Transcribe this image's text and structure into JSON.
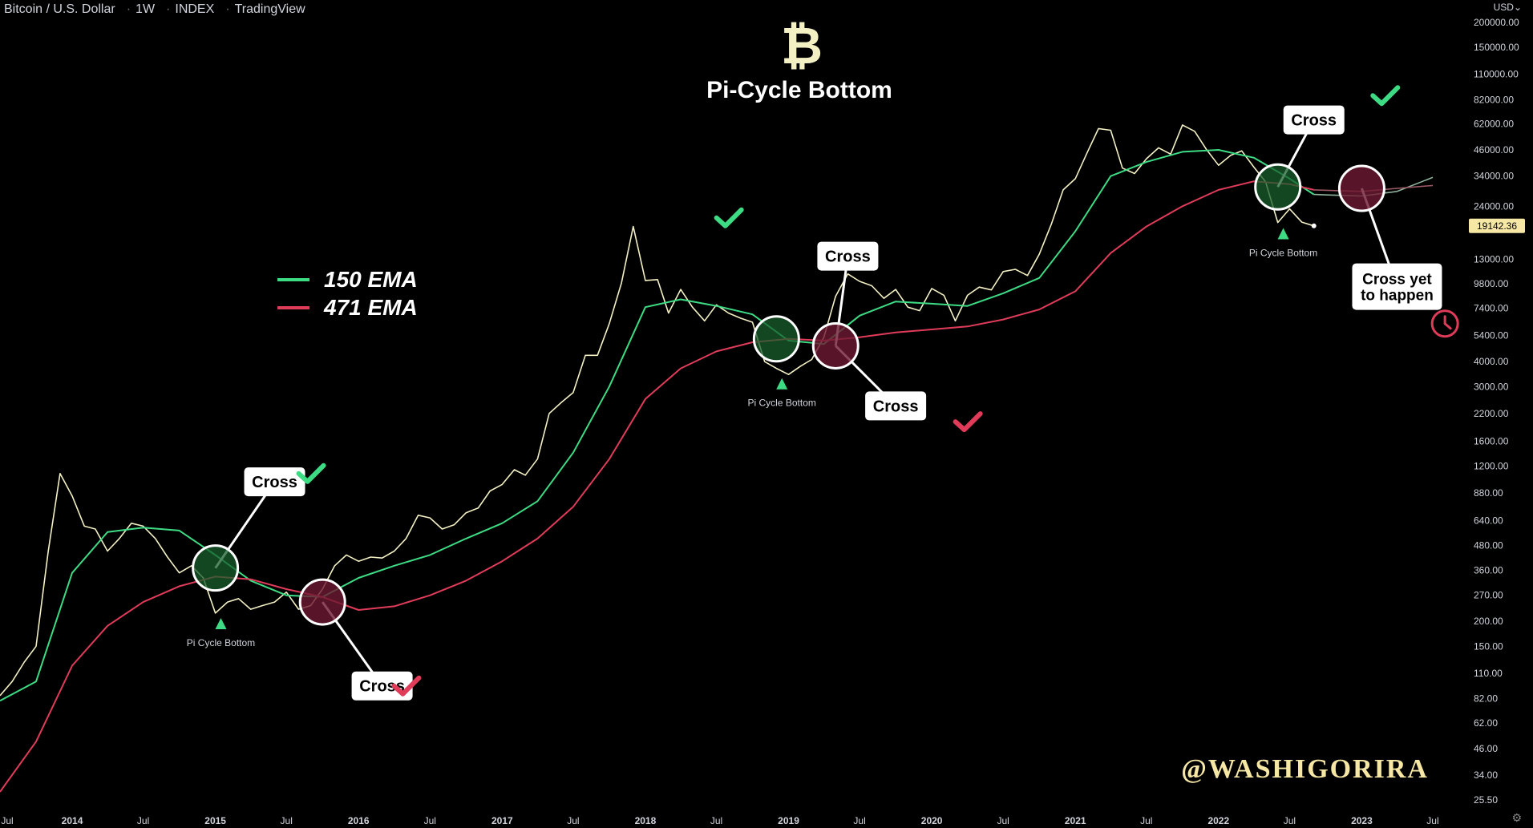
{
  "header": {
    "symbol": "Bitcoin / U.S. Dollar",
    "interval": "1W",
    "exchange": "INDEX",
    "source": "TradingView"
  },
  "currency_label": "USD",
  "currency_icon": "chevron-down-icon",
  "settings_icon": "gear-icon",
  "logo_icon": "bitcoin-icon",
  "title": "Pi-Cycle Bottom",
  "watermark": "@WASHIGORIRA",
  "legend": [
    {
      "name": "150 EMA",
      "color": "#3ddc84"
    },
    {
      "name": "471 EMA",
      "color": "#e03c5a"
    }
  ],
  "price_badge": "19142.36",
  "colors": {
    "price": "#f3f0c3",
    "bull": "#3ddc84",
    "bear": "#e03c5a",
    "bg": "#000000",
    "axis_text": "#d1d4dc"
  },
  "chart_data": {
    "type": "line",
    "y_scale": "log",
    "ylim": [
      25.5,
      200000
    ],
    "xlim": [
      "2013-07-01",
      "2023-10-01"
    ],
    "y_ticks": [
      "200000.00",
      "150000.00",
      "110000.00",
      "82000.00",
      "62000.00",
      "46000.00",
      "34000.00",
      "24000.00",
      "13000.00",
      "9800.00",
      "7400.00",
      "5400.00",
      "4000.00",
      "3000.00",
      "2200.00",
      "1600.00",
      "1200.00",
      "880.00",
      "640.00",
      "480.00",
      "360.00",
      "270.00",
      "200.00",
      "150.00",
      "110.00",
      "82.00",
      "62.00",
      "46.00",
      "34.00",
      "25.50"
    ],
    "x_ticks": [
      {
        "date": "2013-07-01",
        "label": "Jul",
        "bold": false
      },
      {
        "date": "2014-01-01",
        "label": "2014",
        "bold": true
      },
      {
        "date": "2014-07-01",
        "label": "Jul",
        "bold": false
      },
      {
        "date": "2015-01-01",
        "label": "2015",
        "bold": true
      },
      {
        "date": "2015-07-01",
        "label": "Jul",
        "bold": false
      },
      {
        "date": "2016-01-01",
        "label": "2016",
        "bold": true
      },
      {
        "date": "2016-07-01",
        "label": "Jul",
        "bold": false
      },
      {
        "date": "2017-01-01",
        "label": "2017",
        "bold": true
      },
      {
        "date": "2017-07-01",
        "label": "Jul",
        "bold": false
      },
      {
        "date": "2018-01-01",
        "label": "2018",
        "bold": true
      },
      {
        "date": "2018-07-01",
        "label": "Jul",
        "bold": false
      },
      {
        "date": "2019-01-01",
        "label": "2019",
        "bold": true
      },
      {
        "date": "2019-07-01",
        "label": "Jul",
        "bold": false
      },
      {
        "date": "2020-01-01",
        "label": "2020",
        "bold": true
      },
      {
        "date": "2020-07-01",
        "label": "Jul",
        "bold": false
      },
      {
        "date": "2021-01-01",
        "label": "2021",
        "bold": true
      },
      {
        "date": "2021-07-01",
        "label": "Jul",
        "bold": false
      },
      {
        "date": "2022-01-01",
        "label": "2022",
        "bold": true
      },
      {
        "date": "2022-07-01",
        "label": "Jul",
        "bold": false
      },
      {
        "date": "2023-01-01",
        "label": "2023",
        "bold": true
      },
      {
        "date": "2023-07-01",
        "label": "Jul",
        "bold": false
      }
    ],
    "series": [
      {
        "key": "price",
        "color": "#f3f0c3",
        "points": [
          [
            "2013-07-01",
            85
          ],
          [
            "2013-08-01",
            100
          ],
          [
            "2013-09-01",
            125
          ],
          [
            "2013-10-01",
            150
          ],
          [
            "2013-11-01",
            450
          ],
          [
            "2013-12-01",
            1100
          ],
          [
            "2014-01-01",
            850
          ],
          [
            "2014-02-01",
            600
          ],
          [
            "2014-03-01",
            580
          ],
          [
            "2014-04-01",
            450
          ],
          [
            "2014-05-01",
            520
          ],
          [
            "2014-06-01",
            620
          ],
          [
            "2014-07-01",
            600
          ],
          [
            "2014-08-01",
            520
          ],
          [
            "2014-09-01",
            420
          ],
          [
            "2014-10-01",
            350
          ],
          [
            "2014-11-01",
            380
          ],
          [
            "2014-12-01",
            330
          ],
          [
            "2015-01-01",
            220
          ],
          [
            "2015-02-01",
            250
          ],
          [
            "2015-03-01",
            260
          ],
          [
            "2015-04-01",
            230
          ],
          [
            "2015-05-01",
            240
          ],
          [
            "2015-06-01",
            250
          ],
          [
            "2015-07-01",
            280
          ],
          [
            "2015-08-01",
            230
          ],
          [
            "2015-09-01",
            240
          ],
          [
            "2015-10-01",
            290
          ],
          [
            "2015-11-01",
            380
          ],
          [
            "2015-12-01",
            430
          ],
          [
            "2016-01-01",
            400
          ],
          [
            "2016-02-01",
            420
          ],
          [
            "2016-03-01",
            415
          ],
          [
            "2016-04-01",
            450
          ],
          [
            "2016-05-01",
            520
          ],
          [
            "2016-06-01",
            680
          ],
          [
            "2016-07-01",
            660
          ],
          [
            "2016-08-01",
            580
          ],
          [
            "2016-09-01",
            610
          ],
          [
            "2016-10-01",
            700
          ],
          [
            "2016-11-01",
            740
          ],
          [
            "2016-12-01",
            900
          ],
          [
            "2017-01-01",
            970
          ],
          [
            "2017-02-01",
            1150
          ],
          [
            "2017-03-01",
            1080
          ],
          [
            "2017-04-01",
            1300
          ],
          [
            "2017-05-01",
            2200
          ],
          [
            "2017-06-01",
            2500
          ],
          [
            "2017-07-01",
            2800
          ],
          [
            "2017-08-01",
            4300
          ],
          [
            "2017-09-01",
            4300
          ],
          [
            "2017-10-01",
            6200
          ],
          [
            "2017-11-01",
            9900
          ],
          [
            "2017-12-01",
            19000
          ],
          [
            "2018-01-01",
            10200
          ],
          [
            "2018-02-01",
            10300
          ],
          [
            "2018-03-01",
            7000
          ],
          [
            "2018-04-01",
            9200
          ],
          [
            "2018-05-01",
            7500
          ],
          [
            "2018-06-01",
            6400
          ],
          [
            "2018-07-01",
            7700
          ],
          [
            "2018-08-01",
            7000
          ],
          [
            "2018-09-01",
            6600
          ],
          [
            "2018-10-01",
            6300
          ],
          [
            "2018-11-01",
            4000
          ],
          [
            "2018-12-01",
            3700
          ],
          [
            "2019-01-01",
            3450
          ],
          [
            "2019-02-01",
            3800
          ],
          [
            "2019-03-01",
            4100
          ],
          [
            "2019-04-01",
            5300
          ],
          [
            "2019-05-01",
            8500
          ],
          [
            "2019-06-01",
            11000
          ],
          [
            "2019-07-01",
            10100
          ],
          [
            "2019-08-01",
            9600
          ],
          [
            "2019-09-01",
            8300
          ],
          [
            "2019-10-01",
            9200
          ],
          [
            "2019-11-01",
            7500
          ],
          [
            "2019-12-01",
            7200
          ],
          [
            "2020-01-01",
            9300
          ],
          [
            "2020-02-01",
            8600
          ],
          [
            "2020-03-01",
            6400
          ],
          [
            "2020-04-01",
            8600
          ],
          [
            "2020-05-01",
            9450
          ],
          [
            "2020-06-01",
            9150
          ],
          [
            "2020-07-01",
            11300
          ],
          [
            "2020-08-01",
            11600
          ],
          [
            "2020-09-01",
            10800
          ],
          [
            "2020-10-01",
            13800
          ],
          [
            "2020-11-01",
            19600
          ],
          [
            "2020-12-01",
            29000
          ],
          [
            "2021-01-01",
            33000
          ],
          [
            "2021-02-01",
            45000
          ],
          [
            "2021-03-01",
            58800
          ],
          [
            "2021-04-01",
            57700
          ],
          [
            "2021-05-01",
            37300
          ],
          [
            "2021-06-01",
            35000
          ],
          [
            "2021-07-01",
            41500
          ],
          [
            "2021-08-01",
            47100
          ],
          [
            "2021-09-01",
            43800
          ],
          [
            "2021-10-01",
            61300
          ],
          [
            "2021-11-01",
            57000
          ],
          [
            "2021-12-01",
            46300
          ],
          [
            "2022-01-01",
            38500
          ],
          [
            "2022-02-01",
            43200
          ],
          [
            "2022-03-01",
            45500
          ],
          [
            "2022-04-01",
            37700
          ],
          [
            "2022-05-01",
            31800
          ],
          [
            "2022-06-01",
            19900
          ],
          [
            "2022-07-01",
            23300
          ],
          [
            "2022-08-01",
            20000
          ],
          [
            "2022-09-01",
            19142.36
          ]
        ]
      },
      {
        "key": "ema150",
        "color": "#3ddc84",
        "points": [
          [
            "2013-07-01",
            80
          ],
          [
            "2013-10-01",
            100
          ],
          [
            "2014-01-01",
            350
          ],
          [
            "2014-04-01",
            560
          ],
          [
            "2014-07-01",
            590
          ],
          [
            "2014-10-01",
            570
          ],
          [
            "2015-01-01",
            430
          ],
          [
            "2015-04-01",
            320
          ],
          [
            "2015-07-01",
            270
          ],
          [
            "2015-10-01",
            265
          ],
          [
            "2016-01-01",
            330
          ],
          [
            "2016-04-01",
            380
          ],
          [
            "2016-07-01",
            430
          ],
          [
            "2016-10-01",
            520
          ],
          [
            "2017-01-01",
            620
          ],
          [
            "2017-04-01",
            800
          ],
          [
            "2017-07-01",
            1400
          ],
          [
            "2017-10-01",
            3000
          ],
          [
            "2018-01-01",
            7500
          ],
          [
            "2018-04-01",
            8200
          ],
          [
            "2018-07-01",
            7600
          ],
          [
            "2018-10-01",
            6900
          ],
          [
            "2019-01-01",
            5100
          ],
          [
            "2019-04-01",
            4900
          ],
          [
            "2019-07-01",
            6800
          ],
          [
            "2019-10-01",
            8000
          ],
          [
            "2020-01-01",
            7800
          ],
          [
            "2020-04-01",
            7600
          ],
          [
            "2020-07-01",
            8800
          ],
          [
            "2020-10-01",
            10500
          ],
          [
            "2021-01-01",
            18000
          ],
          [
            "2021-04-01",
            34000
          ],
          [
            "2021-07-01",
            40000
          ],
          [
            "2021-10-01",
            45000
          ],
          [
            "2022-01-01",
            46000
          ],
          [
            "2022-04-01",
            42000
          ],
          [
            "2022-07-01",
            33000
          ],
          [
            "2022-09-01",
            27500
          ]
        ]
      },
      {
        "key": "ema471",
        "color": "#e03c5a",
        "points": [
          [
            "2013-07-01",
            28
          ],
          [
            "2013-10-01",
            50
          ],
          [
            "2014-01-01",
            120
          ],
          [
            "2014-04-01",
            190
          ],
          [
            "2014-07-01",
            250
          ],
          [
            "2014-10-01",
            300
          ],
          [
            "2015-01-01",
            335
          ],
          [
            "2015-04-01",
            325
          ],
          [
            "2015-07-01",
            290
          ],
          [
            "2015-10-01",
            265
          ],
          [
            "2016-01-01",
            228
          ],
          [
            "2016-04-01",
            238
          ],
          [
            "2016-07-01",
            270
          ],
          [
            "2016-10-01",
            320
          ],
          [
            "2017-01-01",
            400
          ],
          [
            "2017-04-01",
            520
          ],
          [
            "2017-07-01",
            750
          ],
          [
            "2017-10-01",
            1300
          ],
          [
            "2018-01-01",
            2600
          ],
          [
            "2018-04-01",
            3700
          ],
          [
            "2018-07-01",
            4500
          ],
          [
            "2018-10-01",
            5000
          ],
          [
            "2019-01-01",
            5200
          ],
          [
            "2019-04-01",
            5100
          ],
          [
            "2019-07-01",
            5300
          ],
          [
            "2019-10-01",
            5600
          ],
          [
            "2020-01-01",
            5800
          ],
          [
            "2020-04-01",
            6000
          ],
          [
            "2020-07-01",
            6500
          ],
          [
            "2020-10-01",
            7300
          ],
          [
            "2021-01-01",
            9000
          ],
          [
            "2021-04-01",
            14000
          ],
          [
            "2021-07-01",
            19000
          ],
          [
            "2021-10-01",
            24000
          ],
          [
            "2022-01-01",
            29000
          ],
          [
            "2022-04-01",
            32000
          ],
          [
            "2022-07-01",
            31000
          ],
          [
            "2022-09-01",
            29000
          ]
        ]
      },
      {
        "key": "projection_green",
        "color": "#8fb29c",
        "points": [
          [
            "2022-09-01",
            27500
          ],
          [
            "2023-01-01",
            27000
          ],
          [
            "2023-04-01",
            28500
          ],
          [
            "2023-07-01",
            33500
          ]
        ]
      },
      {
        "key": "projection_red",
        "color": "#9b5a66",
        "points": [
          [
            "2022-09-01",
            29000
          ],
          [
            "2023-01-01",
            28500
          ],
          [
            "2023-04-01",
            29500
          ],
          [
            "2023-07-01",
            30500
          ]
        ]
      }
    ],
    "annotations": {
      "circles": [
        {
          "kind": "green",
          "date": "2015-01-01",
          "price": 370
        },
        {
          "kind": "red",
          "date": "2015-10-01",
          "price": 250
        },
        {
          "kind": "green",
          "date": "2018-12-01",
          "price": 5200
        },
        {
          "kind": "red",
          "date": "2019-05-01",
          "price": 4800
        },
        {
          "kind": "green",
          "date": "2022-06-01",
          "price": 30000
        },
        {
          "kind": "red",
          "date": "2023-01-01",
          "price": 29500
        }
      ],
      "callouts": [
        {
          "lines": [
            "Cross"
          ],
          "date": "2015-06-01",
          "price": 1000
        },
        {
          "lines": [
            "Cross"
          ],
          "date": "2016-03-01",
          "price": 95
        },
        {
          "lines": [
            "Cross"
          ],
          "date": "2019-06-01",
          "price": 13500
        },
        {
          "lines": [
            "Cross"
          ],
          "date": "2019-10-01",
          "price": 2400
        },
        {
          "lines": [
            "Cross"
          ],
          "date": "2022-09-01",
          "price": 65000
        },
        {
          "lines": [
            "Cross yet",
            "to happen"
          ],
          "date": "2023-04-01",
          "price": 9500
        }
      ],
      "bottoms": [
        {
          "label": "Pi Cycle Bottom",
          "date": "2015-01-15",
          "price": 195
        },
        {
          "label": "Pi Cycle Bottom",
          "date": "2018-12-15",
          "price": 3100
        },
        {
          "label": "Pi Cycle Bottom",
          "date": "2022-06-15",
          "price": 17500
        }
      ],
      "checks": [
        {
          "color": "#3ddc84",
          "date": "2015-09-01",
          "price": 1100
        },
        {
          "color": "#e03c5a",
          "date": "2016-05-01",
          "price": 95
        },
        {
          "color": "#3ddc84",
          "date": "2018-08-01",
          "price": 21000
        },
        {
          "color": "#e03c5a",
          "date": "2020-04-01",
          "price": 2000
        },
        {
          "color": "#3ddc84",
          "date": "2023-03-01",
          "price": 86000
        }
      ],
      "clock": {
        "color": "#e03c5a",
        "date": "2023-08-01",
        "price": 6200
      }
    }
  }
}
